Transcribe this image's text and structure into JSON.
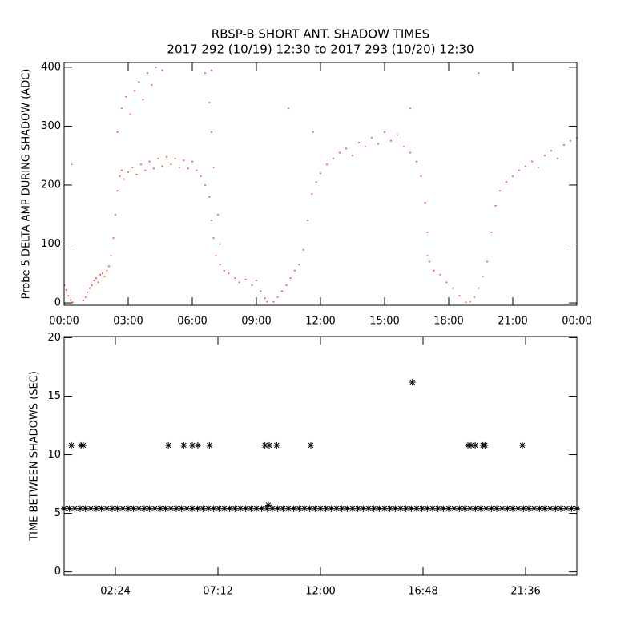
{
  "chart_data": [
    {
      "type": "scatter",
      "title": "RBSP-B SHORT ANT. SHADOW TIMES",
      "subtitle": "2017 292 (10/19) 12:30 to 2017 293 (10/20) 12:30",
      "ylabel": "Probe 5 DELTA AMP DURING SHADOW (ADC)",
      "marker": "dot",
      "color": "#ff2a00",
      "xlim": [
        0,
        24
      ],
      "ylim": [
        -4,
        408
      ],
      "xticks": [
        {
          "value": 0,
          "label": "00:00"
        },
        {
          "value": 3,
          "label": "03:00"
        },
        {
          "value": 6,
          "label": "06:00"
        },
        {
          "value": 9,
          "label": "09:00"
        },
        {
          "value": 12,
          "label": "12:00"
        },
        {
          "value": 15,
          "label": "15:00"
        },
        {
          "value": 18,
          "label": "18:00"
        },
        {
          "value": 21,
          "label": "21:00"
        },
        {
          "value": 24,
          "label": "00:00"
        }
      ],
      "yticks": [
        0,
        100,
        200,
        300,
        400
      ],
      "x": [
        0.02,
        0.1,
        0.2,
        0.3,
        0.4,
        0.9,
        1.0,
        1.1,
        1.2,
        1.3,
        1.4,
        1.5,
        1.6,
        1.7,
        1.8,
        1.9,
        2.0,
        2.1,
        2.2,
        2.3,
        2.4,
        2.5,
        2.6,
        2.7,
        2.8,
        3.0,
        3.2,
        3.4,
        3.6,
        3.8,
        4.0,
        4.2,
        4.4,
        4.6,
        4.8,
        5.0,
        5.2,
        5.4,
        5.6,
        5.8,
        6.0,
        6.2,
        6.4,
        6.6,
        6.8,
        6.9,
        7.0,
        7.1,
        7.3,
        7.5,
        7.7,
        8.0,
        8.2,
        8.5,
        8.8,
        9.0,
        9.2,
        9.4,
        9.5,
        2.5,
        2.7,
        2.9,
        3.1,
        3.3,
        3.5,
        3.7,
        3.9,
        4.1,
        4.3,
        4.6,
        6.6,
        6.8,
        6.9,
        7.0,
        7.2,
        7.3,
        9.8,
        10.0,
        10.2,
        10.4,
        10.6,
        10.8,
        11.0,
        11.2,
        11.4,
        11.6,
        11.8,
        12.0,
        12.3,
        12.6,
        12.9,
        13.2,
        13.5,
        13.8,
        14.1,
        14.4,
        14.7,
        15.0,
        15.3,
        15.6,
        15.9,
        16.2,
        16.5,
        16.7,
        16.9,
        17.0,
        17.1,
        17.3,
        17.6,
        17.9,
        18.2,
        18.5,
        18.8,
        19.0,
        19.2,
        19.4,
        19.6,
        19.8,
        20.0,
        20.2,
        20.4,
        20.7,
        21.0,
        21.3,
        21.6,
        21.9,
        22.2,
        22.5,
        22.8,
        23.1,
        23.4,
        23.7,
        24.0,
        0.35,
        10.5,
        11.65,
        16.2,
        19.4,
        6.9,
        17.0
      ],
      "values": [
        30,
        22,
        12,
        5,
        1,
        4,
        10,
        18,
        25,
        30,
        38,
        42,
        35,
        48,
        50,
        45,
        55,
        62,
        80,
        110,
        150,
        190,
        215,
        225,
        210,
        222,
        230,
        218,
        235,
        225,
        240,
        228,
        245,
        232,
        248,
        235,
        245,
        230,
        242,
        228,
        240,
        225,
        215,
        200,
        180,
        140,
        110,
        80,
        65,
        55,
        50,
        42,
        35,
        40,
        30,
        38,
        20,
        8,
        2,
        290,
        330,
        350,
        320,
        360,
        375,
        345,
        390,
        370,
        400,
        395,
        390,
        340,
        290,
        230,
        150,
        100,
        2,
        10,
        20,
        30,
        42,
        55,
        65,
        90,
        140,
        185,
        205,
        220,
        235,
        245,
        255,
        262,
        250,
        272,
        265,
        280,
        270,
        290,
        275,
        285,
        265,
        255,
        240,
        215,
        170,
        120,
        70,
        55,
        48,
        35,
        25,
        12,
        1,
        2,
        10,
        25,
        45,
        70,
        120,
        165,
        190,
        205,
        215,
        225,
        232,
        240,
        230,
        250,
        258,
        245,
        268,
        275,
        280,
        235,
        330,
        290,
        330,
        390,
        395,
        80
      ]
    },
    {
      "type": "scatter",
      "ylabel": "TIME BETWEEN SHADOWS (SEC)",
      "marker": "asterisk",
      "color": "#000000",
      "xlim": [
        0,
        24
      ],
      "ylim": [
        -0.3,
        20.1
      ],
      "xticks": [
        {
          "value": 2.4,
          "label": "02:24"
        },
        {
          "value": 7.2,
          "label": "07:12"
        },
        {
          "value": 12,
          "label": "12:00"
        },
        {
          "value": 16.8,
          "label": "16:48"
        },
        {
          "value": 21.6,
          "label": "21:36"
        }
      ],
      "yticks": [
        0,
        5,
        10,
        15,
        20
      ],
      "x": [
        0,
        0.25,
        0.5,
        0.75,
        1,
        1.25,
        1.5,
        1.75,
        2,
        2.25,
        2.5,
        2.75,
        3,
        3.25,
        3.5,
        3.75,
        4,
        4.25,
        4.5,
        4.75,
        5,
        5.25,
        5.5,
        5.75,
        6,
        6.25,
        6.5,
        6.75,
        7,
        7.25,
        7.5,
        7.75,
        8,
        8.25,
        8.5,
        8.75,
        9,
        9.25,
        9.5,
        9.75,
        10,
        10.25,
        10.5,
        10.75,
        11,
        11.25,
        11.5,
        11.75,
        12,
        12.25,
        12.5,
        12.75,
        13,
        13.25,
        13.5,
        13.75,
        14,
        14.25,
        14.5,
        14.75,
        15,
        15.25,
        15.5,
        15.75,
        16,
        16.25,
        16.5,
        16.75,
        17,
        17.25,
        17.5,
        17.75,
        18,
        18.25,
        18.5,
        18.75,
        19,
        19.25,
        19.5,
        19.75,
        20,
        20.25,
        20.5,
        20.75,
        21,
        21.25,
        21.5,
        21.75,
        22,
        22.25,
        22.5,
        22.75,
        23,
        23.25,
        23.5,
        23.75,
        24,
        0.34,
        0.79,
        0.9,
        4.88,
        5.6,
        6.0,
        6.26,
        6.8,
        9.4,
        9.56,
        9.6,
        9.95,
        11.55,
        16.3,
        18.9,
        19.05,
        19.24,
        19.6,
        19.7,
        21.45
      ],
      "values": [
        5.4,
        5.4,
        5.4,
        5.4,
        5.4,
        5.4,
        5.4,
        5.4,
        5.4,
        5.4,
        5.4,
        5.4,
        5.4,
        5.4,
        5.4,
        5.4,
        5.4,
        5.4,
        5.4,
        5.4,
        5.4,
        5.4,
        5.4,
        5.4,
        5.4,
        5.4,
        5.4,
        5.4,
        5.4,
        5.4,
        5.4,
        5.4,
        5.4,
        5.4,
        5.4,
        5.4,
        5.4,
        5.4,
        5.4,
        5.4,
        5.4,
        5.4,
        5.4,
        5.4,
        5.4,
        5.4,
        5.4,
        5.4,
        5.4,
        5.4,
        5.4,
        5.4,
        5.4,
        5.4,
        5.4,
        5.4,
        5.4,
        5.4,
        5.4,
        5.4,
        5.4,
        5.4,
        5.4,
        5.4,
        5.4,
        5.4,
        5.4,
        5.4,
        5.4,
        5.4,
        5.4,
        5.4,
        5.4,
        5.4,
        5.4,
        5.4,
        5.4,
        5.4,
        5.4,
        5.4,
        5.4,
        5.4,
        5.4,
        5.4,
        5.4,
        5.4,
        5.4,
        5.4,
        5.4,
        5.4,
        5.4,
        5.4,
        5.4,
        5.4,
        5.4,
        5.4,
        5.4,
        10.8,
        10.8,
        10.8,
        10.8,
        10.8,
        10.8,
        10.8,
        10.8,
        10.8,
        5.7,
        10.8,
        10.8,
        10.8,
        16.2,
        10.8,
        10.8,
        10.8,
        10.8,
        10.8,
        10.8
      ]
    }
  ]
}
